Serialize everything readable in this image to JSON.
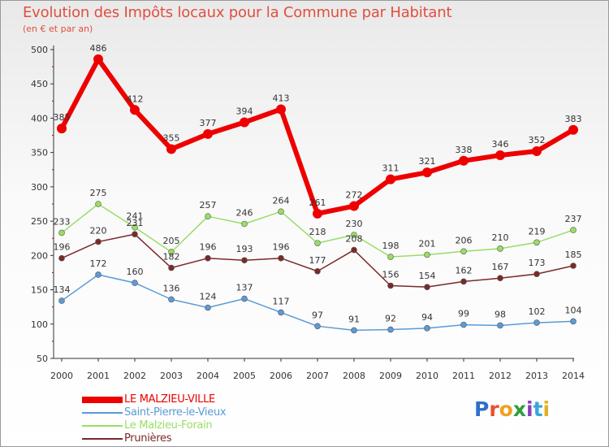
{
  "title": "Evolution des Impôts locaux pour la Commune par Habitant",
  "subtitle": "(en € et par an)",
  "logo": {
    "text": "Proxiti",
    "colors": [
      "#2f6fc9",
      "#e8502e",
      "#f0a020",
      "#2f9e3a",
      "#8a3fb5",
      "#3aa5d8",
      "#e0b020"
    ]
  },
  "chart_data": {
    "type": "line",
    "x": [
      "2000",
      "2001",
      "2002",
      "2003",
      "2004",
      "2005",
      "2006",
      "2007",
      "2008",
      "2009",
      "2010",
      "2011",
      "2012",
      "2013",
      "2014"
    ],
    "ylim": [
      50,
      500
    ],
    "yticks": [
      "50",
      "100",
      "150",
      "200",
      "250",
      "300",
      "350",
      "400",
      "450",
      "500"
    ],
    "grid": false,
    "legend_position": "bottom-left",
    "series": [
      {
        "name": "LE MALZIEU-VILLE",
        "color": "#ee0000",
        "width": 6,
        "values": [
          385,
          486,
          412,
          355,
          377,
          394,
          413,
          261,
          272,
          311,
          321,
          338,
          346,
          352,
          383
        ],
        "labels": [
          "385",
          "486",
          "412",
          "355",
          "377",
          "394",
          "413",
          "261",
          "272",
          "311",
          "321",
          "338",
          "346",
          "352",
          "383"
        ]
      },
      {
        "name": "Saint-Pierre-le-Vieux",
        "color": "#5b9bd5",
        "width": 1.5,
        "values": [
          134,
          172,
          160,
          136,
          124,
          137,
          117,
          97,
          91,
          92,
          94,
          99,
          98,
          102,
          104
        ],
        "labels": [
          "134",
          "172",
          "160",
          "136",
          "124",
          "137",
          "117",
          "97",
          "91",
          "92",
          "94",
          "99",
          "98",
          "102",
          "104"
        ]
      },
      {
        "name": "Le Malzieu-Forain",
        "color": "#99dd66",
        "width": 1.5,
        "values": [
          233,
          275,
          241,
          205,
          257,
          246,
          264,
          218,
          230,
          198,
          201,
          206,
          210,
          219,
          237
        ],
        "labels": [
          "233",
          "275",
          "241",
          "205",
          "257",
          "246",
          "264",
          "218",
          "230",
          "198",
          "201",
          "206",
          "210",
          "219",
          "237"
        ]
      },
      {
        "name": "Prunières",
        "color": "#7a2a2a",
        "width": 1.5,
        "values": [
          196,
          220,
          231,
          182,
          196,
          193,
          196,
          177,
          208,
          156,
          154,
          162,
          167,
          173,
          185
        ],
        "labels": [
          "196",
          "220",
          "231",
          "182",
          "196",
          "193",
          "196",
          "177",
          "208",
          "156",
          "154",
          "162",
          "167",
          "173",
          "185"
        ]
      }
    ]
  }
}
